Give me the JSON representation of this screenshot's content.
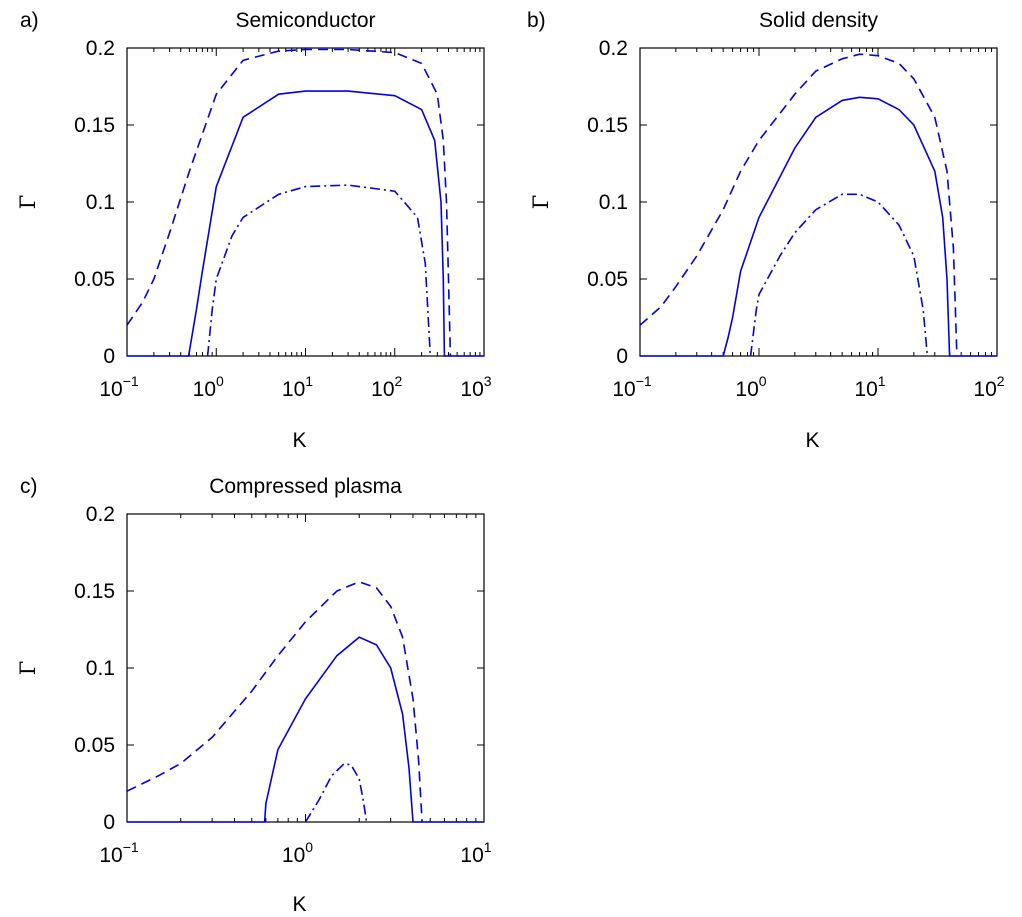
{
  "chart_data": [
    {
      "type": "line",
      "panel_label": "a)",
      "title": "Semiconductor",
      "xlabel": "K",
      "ylabel": "Γ",
      "x_scale": "log",
      "xlim": [
        0.1,
        1000
      ],
      "ylim": [
        0,
        0.2
      ],
      "y_ticks": [
        "0",
        "0.05",
        "0.1",
        "0.15",
        "0.2"
      ],
      "x_ticks": [
        {
          "base": "10",
          "exp": "−1"
        },
        {
          "base": "10",
          "exp": "0"
        },
        {
          "base": "10",
          "exp": "1"
        },
        {
          "base": "10",
          "exp": "2"
        },
        {
          "base": "10",
          "exp": "3"
        }
      ],
      "grid": false,
      "color": "#0000ee",
      "series": [
        {
          "style": "dashed",
          "x": [
            0.1,
            0.15,
            0.2,
            0.3,
            0.5,
            1,
            2,
            5,
            10,
            30,
            100,
            200,
            300,
            350,
            380,
            400,
            420
          ],
          "y": [
            0.02,
            0.035,
            0.05,
            0.08,
            0.12,
            0.17,
            0.192,
            0.198,
            0.199,
            0.199,
            0.197,
            0.19,
            0.17,
            0.14,
            0.1,
            0.05,
            0
          ]
        },
        {
          "style": "solid",
          "x": [
            0.1,
            0.49,
            0.5,
            0.6,
            0.7,
            1,
            2,
            5,
            10,
            30,
            100,
            200,
            280,
            330,
            350,
            360,
            1000
          ],
          "y": [
            0,
            0,
            0.003,
            0.03,
            0.055,
            0.11,
            0.155,
            0.17,
            0.172,
            0.172,
            0.169,
            0.16,
            0.14,
            0.1,
            0.05,
            0,
            0
          ]
        },
        {
          "style": "dashdot",
          "x": [
            0.8,
            0.9,
            1,
            1.5,
            2,
            5,
            10,
            30,
            100,
            180,
            220,
            250
          ],
          "y": [
            0,
            0.03,
            0.05,
            0.078,
            0.09,
            0.105,
            0.11,
            0.111,
            0.107,
            0.09,
            0.06,
            0
          ]
        }
      ]
    },
    {
      "type": "line",
      "panel_label": "b)",
      "title": "Solid density",
      "xlabel": "K",
      "ylabel": "Γ",
      "x_scale": "log",
      "xlim": [
        0.1,
        100
      ],
      "ylim": [
        0,
        0.2
      ],
      "y_ticks": [
        "0",
        "0.05",
        "0.1",
        "0.15",
        "0.2"
      ],
      "x_ticks": [
        {
          "base": "10",
          "exp": "−1"
        },
        {
          "base": "10",
          "exp": "0"
        },
        {
          "base": "10",
          "exp": "1"
        },
        {
          "base": "10",
          "exp": "2"
        }
      ],
      "grid": false,
      "color": "#0000ee",
      "series": [
        {
          "style": "dashed",
          "x": [
            0.1,
            0.15,
            0.2,
            0.3,
            0.5,
            0.7,
            1,
            2,
            3,
            5,
            7,
            10,
            15,
            20,
            30,
            38,
            43,
            46
          ],
          "y": [
            0.02,
            0.032,
            0.045,
            0.065,
            0.095,
            0.12,
            0.14,
            0.17,
            0.185,
            0.193,
            0.196,
            0.195,
            0.19,
            0.18,
            0.155,
            0.12,
            0.07,
            0
          ]
        },
        {
          "style": "solid",
          "x": [
            0.1,
            0.5,
            0.55,
            0.6,
            0.7,
            1,
            2,
            3,
            5,
            7,
            10,
            15,
            20,
            30,
            35,
            38,
            40,
            100
          ],
          "y": [
            0,
            0,
            0.012,
            0.025,
            0.055,
            0.09,
            0.135,
            0.155,
            0.166,
            0.168,
            0.167,
            0.16,
            0.15,
            0.12,
            0.09,
            0.05,
            0,
            0
          ]
        },
        {
          "style": "dashdot",
          "x": [
            0.85,
            0.95,
            1,
            1.5,
            2,
            3,
            5,
            7,
            10,
            15,
            20,
            24,
            26
          ],
          "y": [
            0,
            0.03,
            0.04,
            0.065,
            0.08,
            0.095,
            0.105,
            0.105,
            0.1,
            0.085,
            0.065,
            0.03,
            0
          ]
        }
      ]
    },
    {
      "type": "line",
      "panel_label": "c)",
      "title": "Compressed plasma",
      "xlabel": "K",
      "ylabel": "Γ",
      "x_scale": "log",
      "xlim": [
        0.1,
        10
      ],
      "ylim": [
        0,
        0.2
      ],
      "y_ticks": [
        "0",
        "0.05",
        "0.1",
        "0.15",
        "0.2"
      ],
      "x_ticks": [
        {
          "base": "10",
          "exp": "−1"
        },
        {
          "base": "10",
          "exp": "0"
        },
        {
          "base": "10",
          "exp": "1"
        }
      ],
      "grid": false,
      "color": "#0000ee",
      "series": [
        {
          "style": "dashed",
          "x": [
            0.1,
            0.15,
            0.2,
            0.3,
            0.5,
            0.7,
            1,
            1.5,
            2,
            2.5,
            3,
            3.5,
            4,
            4.3,
            4.5
          ],
          "y": [
            0.02,
            0.03,
            0.038,
            0.055,
            0.085,
            0.108,
            0.13,
            0.15,
            0.156,
            0.152,
            0.14,
            0.12,
            0.08,
            0.04,
            0
          ]
        },
        {
          "style": "solid",
          "x": [
            0.1,
            0.59,
            0.6,
            0.7,
            1,
            1.5,
            2,
            2.5,
            3,
            3.5,
            3.8,
            4,
            10
          ],
          "y": [
            0,
            0,
            0.012,
            0.047,
            0.08,
            0.108,
            0.12,
            0.115,
            0.1,
            0.07,
            0.035,
            0,
            0
          ]
        },
        {
          "style": "dashdot",
          "x": [
            1,
            1.2,
            1.4,
            1.65,
            1.8,
            2,
            2.1,
            2.2
          ],
          "y": [
            0,
            0.015,
            0.03,
            0.038,
            0.037,
            0.028,
            0.015,
            0
          ]
        }
      ]
    }
  ]
}
